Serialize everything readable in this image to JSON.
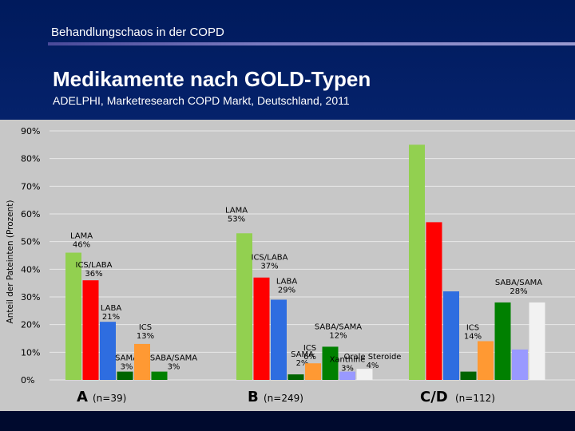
{
  "header": {
    "top_title": "Behandlungschaos in der COPD",
    "title": "Medikamente nach GOLD-Typen",
    "subtitle": "ADELPHI, Marketresearch COPD Markt, Deutschland, 2011"
  },
  "colors": {
    "LAMA": "#92d050",
    "ICS/LABA": "#ff0000",
    "LABA": "#2e6de0",
    "SAMA": "#006400",
    "ICS": "#ff9933",
    "SABA/SAMA": "#008000",
    "Xanthine": "#9999ff",
    "Orale Steroide": "#f2f2f2"
  },
  "chart_data": {
    "type": "bar",
    "title": "Medikamente nach GOLD-Typen",
    "xlabel": "",
    "ylabel": "Anteil der Pateinten (Prozent)",
    "ylim": [
      0,
      90
    ],
    "yticks": [
      "0%",
      "10%",
      "20%",
      "30%",
      "40%",
      "50%",
      "60%",
      "70%",
      "80%",
      "90%"
    ],
    "grid": true,
    "groups": [
      {
        "name": "A",
        "n": "(n=39)",
        "bars": [
          {
            "series": "LAMA",
            "value": 46,
            "label": "LAMA\n46%"
          },
          {
            "series": "ICS/LABA",
            "value": 36,
            "label": "ICS/LABA\n36%"
          },
          {
            "series": "LABA",
            "value": 21,
            "label": "LABA\n21%"
          },
          {
            "series": "SAMA",
            "value": 3,
            "label": "SAMA\n3%"
          },
          {
            "series": "ICS",
            "value": 13,
            "label": "ICS\n13%"
          },
          {
            "series": "SABA/SAMA",
            "value": 3,
            "label": "SABA/SAMA\n3%"
          }
        ]
      },
      {
        "name": "B",
        "n": "(n=249)",
        "bars": [
          {
            "series": "LAMA",
            "value": 53,
            "label": "LAMA\n53%"
          },
          {
            "series": "ICS/LABA",
            "value": 37,
            "label": "ICS/LABA\n37%"
          },
          {
            "series": "LABA",
            "value": 29,
            "label": "LABA\n29%"
          },
          {
            "series": "SAMA",
            "value": 2,
            "label": "SAMA\n2%"
          },
          {
            "series": "ICS",
            "value": 6,
            "label": "ICS\n6%"
          },
          {
            "series": "SABA/SAMA",
            "value": 12,
            "label": "SABA/SAMA\n12%"
          },
          {
            "series": "Xanthine",
            "value": 3,
            "label": "Xanthine\n3%"
          },
          {
            "series": "Orale Steroide",
            "value": 4,
            "label": "Orale Steroide\n4%"
          }
        ]
      },
      {
        "name": "C/D",
        "n": "(n=112)",
        "bars": [
          {
            "series": "LAMA",
            "value": 85,
            "label": ""
          },
          {
            "series": "ICS/LABA",
            "value": 57,
            "label": ""
          },
          {
            "series": "LABA",
            "value": 32,
            "label": ""
          },
          {
            "series": "SAMA",
            "value": 3,
            "label": ""
          },
          {
            "series": "ICS",
            "value": 14,
            "label": "ICS\n14%"
          },
          {
            "series": "SABA/SAMA",
            "value": 28,
            "label": "SABA/SAMA\n28%"
          },
          {
            "series": "Xanthine",
            "value": 11,
            "label": ""
          },
          {
            "series": "Orale Steroide",
            "value": 28,
            "label": ""
          }
        ]
      }
    ]
  }
}
